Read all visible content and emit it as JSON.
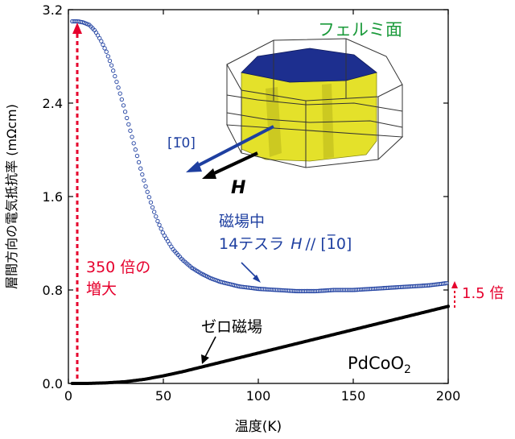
{
  "chart_data": {
    "type": "scatter",
    "title": "",
    "xlabel": "温度(K)",
    "ylabel": "層間方向の電気抵抗率 (mΩcm)",
    "xlim": [
      0,
      200
    ],
    "ylim": [
      0,
      3.2
    ],
    "x_ticks": [
      "0",
      "50",
      "100",
      "150",
      "200"
    ],
    "y_ticks": [
      "0.0",
      "0.8",
      "1.6",
      "2.4",
      "3.2"
    ],
    "grid": false,
    "legend": "none",
    "series": [
      {
        "name": "磁場中 14テスラ H // [1-10]",
        "color": "#1e3fa0",
        "marker": "open-circle",
        "points": [
          [
            2,
            3.1
          ],
          [
            5,
            3.1
          ],
          [
            8,
            3.09
          ],
          [
            11,
            3.07
          ],
          [
            14,
            3.02
          ],
          [
            17,
            2.94
          ],
          [
            20,
            2.84
          ],
          [
            23,
            2.71
          ],
          [
            26,
            2.55
          ],
          [
            29,
            2.38
          ],
          [
            32,
            2.2
          ],
          [
            35,
            2.02
          ],
          [
            38,
            1.84
          ],
          [
            41,
            1.67
          ],
          [
            44,
            1.52
          ],
          [
            47,
            1.39
          ],
          [
            50,
            1.28
          ],
          [
            55,
            1.15
          ],
          [
            60,
            1.06
          ],
          [
            65,
            0.99
          ],
          [
            70,
            0.94
          ],
          [
            75,
            0.9
          ],
          [
            80,
            0.87
          ],
          [
            85,
            0.85
          ],
          [
            90,
            0.83
          ],
          [
            95,
            0.82
          ],
          [
            100,
            0.81
          ],
          [
            110,
            0.8
          ],
          [
            120,
            0.79
          ],
          [
            130,
            0.79
          ],
          [
            140,
            0.8
          ],
          [
            150,
            0.8
          ],
          [
            160,
            0.81
          ],
          [
            170,
            0.82
          ],
          [
            180,
            0.83
          ],
          [
            190,
            0.84
          ],
          [
            200,
            0.86
          ]
        ]
      },
      {
        "name": "ゼロ磁場",
        "color": "#000000",
        "marker": "filled-circle",
        "points": [
          [
            2,
            0.0
          ],
          [
            10,
            0.0
          ],
          [
            20,
            0.005
          ],
          [
            30,
            0.015
          ],
          [
            40,
            0.035
          ],
          [
            50,
            0.065
          ],
          [
            60,
            0.1
          ],
          [
            70,
            0.14
          ],
          [
            80,
            0.18
          ],
          [
            90,
            0.22
          ],
          [
            100,
            0.26
          ],
          [
            110,
            0.3
          ],
          [
            120,
            0.34
          ],
          [
            130,
            0.38
          ],
          [
            140,
            0.42
          ],
          [
            150,
            0.46
          ],
          [
            160,
            0.5
          ],
          [
            170,
            0.54
          ],
          [
            180,
            0.58
          ],
          [
            190,
            0.62
          ],
          [
            200,
            0.66
          ]
        ]
      }
    ],
    "annotations": {
      "fermi_label": "フェルミ面",
      "direction_label": "[1̅0]",
      "h_label": "H",
      "field_label_line1": "磁場中",
      "field_label_line2": "14テスラ",
      "field_label_h": "H",
      "field_label_dir": "// [1̅0]",
      "increase_line1": "350 倍の",
      "increase_line2": "増大",
      "ratio_label": "1.5 倍",
      "zero_field_label": "ゼロ磁場",
      "compound_label_main": "PdCoO",
      "compound_label_sub": "2"
    },
    "colors": {
      "field_series": "#1e3fa0",
      "zero_series": "#000000",
      "highlight": "#e6002d",
      "fermi_label": "#1a9a3a",
      "surface_top": "#1d2f8f",
      "surface_side": "#e4e12a"
    }
  }
}
